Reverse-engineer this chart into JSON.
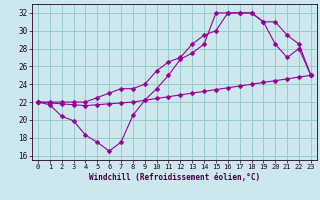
{
  "xlabel": "Windchill (Refroidissement éolien,°C)",
  "bg_color": "#cce8ed",
  "grid_color": "#99cccc",
  "line_color": "#990099",
  "xlim": [
    -0.5,
    23.5
  ],
  "ylim": [
    15.5,
    33.0
  ],
  "xticks": [
    0,
    1,
    2,
    3,
    4,
    5,
    6,
    7,
    8,
    9,
    10,
    11,
    12,
    13,
    14,
    15,
    16,
    17,
    18,
    19,
    20,
    21,
    22,
    23
  ],
  "yticks": [
    16,
    18,
    20,
    22,
    24,
    26,
    28,
    30,
    32
  ],
  "line1_x": [
    0,
    1,
    2,
    3,
    4,
    5,
    6,
    7,
    8,
    9,
    10,
    11,
    12,
    13,
    14,
    15,
    16,
    17,
    18,
    19,
    20,
    21,
    22,
    23
  ],
  "line1_y": [
    22.0,
    21.9,
    21.8,
    21.7,
    21.6,
    21.7,
    21.8,
    21.9,
    22.0,
    22.2,
    22.4,
    22.6,
    22.8,
    23.0,
    23.2,
    23.4,
    23.6,
    23.8,
    24.0,
    24.2,
    24.4,
    24.6,
    24.8,
    25.0
  ],
  "line2_x": [
    0,
    1,
    2,
    3,
    4,
    5,
    6,
    7,
    8,
    9,
    10,
    11,
    12,
    13,
    14,
    15,
    16,
    17,
    18,
    19,
    20,
    21,
    22,
    23
  ],
  "line2_y": [
    22.0,
    21.7,
    20.4,
    19.9,
    18.3,
    17.5,
    16.5,
    17.5,
    20.5,
    22.2,
    23.5,
    25.0,
    26.8,
    27.5,
    28.5,
    32.0,
    32.0,
    32.0,
    32.0,
    31.0,
    28.5,
    27.0,
    28.0,
    25.0
  ],
  "line3_x": [
    0,
    1,
    2,
    3,
    4,
    5,
    6,
    7,
    8,
    9,
    10,
    11,
    12,
    13,
    14,
    15,
    16,
    17,
    18,
    19,
    20,
    21,
    22,
    23
  ],
  "line3_y": [
    22.0,
    22.0,
    22.0,
    22.0,
    22.0,
    22.5,
    23.0,
    23.5,
    23.5,
    24.0,
    25.5,
    26.5,
    27.0,
    28.5,
    29.5,
    30.0,
    32.0,
    32.0,
    32.0,
    31.0,
    31.0,
    29.5,
    28.5,
    25.0
  ]
}
